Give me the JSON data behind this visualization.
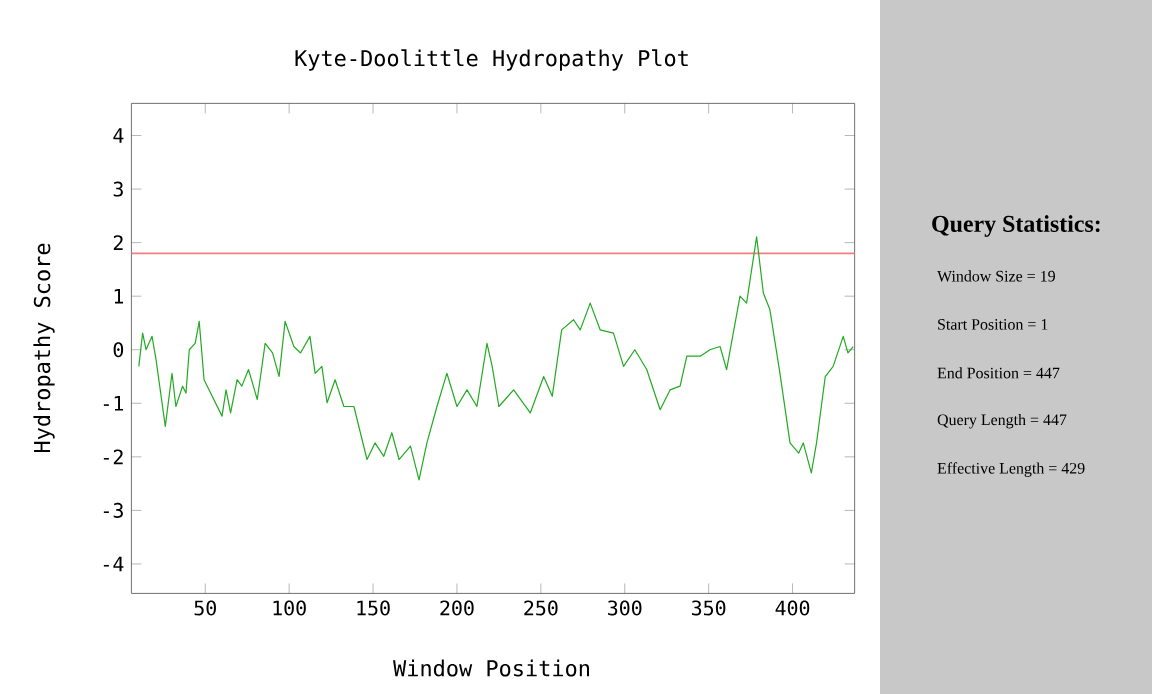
{
  "chart_data": [
    {
      "type": "line",
      "title": "Kyte-Doolittle Hydropathy Plot",
      "xlabel": "Window Position",
      "ylabel": "Hydropathy Score",
      "xlim": [
        6,
        437
      ],
      "ylim": [
        -4.55,
        4.6
      ],
      "xticks": [
        50,
        100,
        150,
        200,
        250,
        300,
        350,
        400
      ],
      "yticks": [
        -4,
        -3,
        -2,
        -1,
        0,
        1,
        2,
        3,
        4
      ],
      "ref_lines": [
        {
          "axis": "y",
          "value": 1.8,
          "color": "#f08080"
        }
      ],
      "series": [
        {
          "color": "#22aa22",
          "x": [
            10.4,
            12.7,
            14.7,
            18.3,
            20.7,
            26.2,
            30.2,
            32.5,
            36.5,
            38.5,
            40.5,
            44,
            46.4,
            49.3,
            53.2,
            60,
            62.4,
            65.1,
            69,
            71.8,
            75.8,
            81,
            85.7,
            90.1,
            94,
            97.6,
            102.8,
            106.8,
            112.4,
            115.5,
            119.5,
            122.6,
            127.4,
            132.6,
            138.6,
            146.4,
            151.2,
            156.4,
            161.2,
            165.5,
            172.3,
            177.4,
            182.1,
            188.1,
            194,
            200,
            206,
            211.9,
            217.9,
            221,
            225,
            233.8,
            243.7,
            251.7,
            256.8,
            262.4,
            269.5,
            273.5,
            279.4,
            285.4,
            293.3,
            299.3,
            306,
            313.1,
            321.1,
            327,
            333,
            337,
            345,
            350.8,
            356.8,
            360.7,
            368.7,
            372.6,
            378.6,
            382.6,
            386.5,
            392.5,
            398.5,
            403.7,
            406.4,
            411.2,
            414.3,
            419.5,
            424.2,
            430.2,
            433,
            436.2
          ],
          "values": [
            -0.31,
            0.31,
            0,
            0.25,
            -0.19,
            -1.43,
            -0.44,
            -1.06,
            -0.68,
            -0.81,
            0,
            0.12,
            0.53,
            -0.56,
            -0.81,
            -1.24,
            -0.75,
            -1.18,
            -0.56,
            -0.68,
            -0.37,
            -0.93,
            0.12,
            -0.06,
            -0.5,
            0.53,
            0.06,
            -0.06,
            0.25,
            -0.44,
            -0.31,
            -0.99,
            -0.56,
            -1.06,
            -1.06,
            -2.05,
            -1.74,
            -1.99,
            -1.55,
            -2.05,
            -1.8,
            -2.43,
            -1.74,
            -1.06,
            -0.44,
            -1.06,
            -0.75,
            -1.06,
            0.12,
            -0.31,
            -1.06,
            -0.75,
            -1.18,
            -0.5,
            -0.87,
            0.37,
            0.56,
            0.37,
            0.87,
            0.37,
            0.31,
            -0.31,
            0,
            -0.37,
            -1.12,
            -0.75,
            -0.68,
            -0.12,
            -0.12,
            0,
            0.06,
            -0.37,
            1.0,
            0.87,
            2.11,
            1.06,
            0.75,
            -0.44,
            -1.74,
            -1.93,
            -1.74,
            -2.3,
            -1.74,
            -0.5,
            -0.31,
            0.25,
            -0.06,
            0.06
          ]
        }
      ]
    },
    {
      "type": "other",
      "title": "Query Statistics:",
      "annotations": [
        "Window Size = 19",
        "Start Position = 1",
        "End Position = 447",
        "Query Length = 447",
        "Effective Length = 429"
      ]
    }
  ]
}
